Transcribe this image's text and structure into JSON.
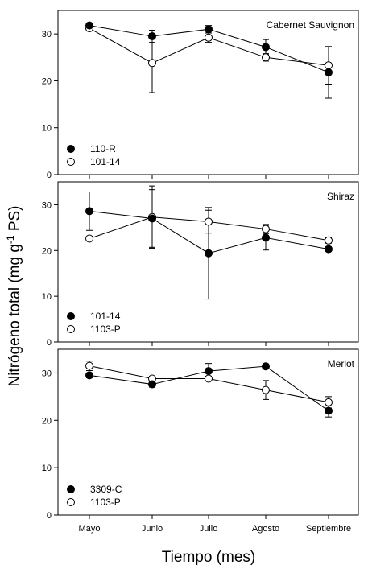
{
  "figure": {
    "ylabel_main": "Nitrógeno total (mg g",
    "ylabel_sup": "-1",
    "ylabel_end": " PS)",
    "xlabel": "Tiempo (mes)"
  },
  "chart_data": [
    {
      "type": "line",
      "title": "Cabernet Sauvignon",
      "categories": [
        "Mayo",
        "Junio",
        "Julio",
        "Agosto",
        "Septiembre"
      ],
      "ylim": [
        0,
        35
      ],
      "yticks": [
        0,
        10,
        20,
        30
      ],
      "legend_placement": "bottom-left",
      "series": [
        {
          "name": "110-R",
          "marker": "filled",
          "values": [
            31.8,
            29.5,
            31.0,
            27.2,
            21.8
          ],
          "err": [
            0.5,
            1.3,
            0.8,
            1.6,
            5.5
          ]
        },
        {
          "name": "101-14",
          "marker": "open",
          "values": [
            31.2,
            23.8,
            29.2,
            25.0,
            23.3
          ],
          "err": [
            0.5,
            6.3,
            1.0,
            0.8,
            4.0
          ]
        }
      ]
    },
    {
      "type": "line",
      "title": "Shiraz",
      "categories": [
        "Mayo",
        "Junio",
        "Julio",
        "Agosto",
        "Septiembre"
      ],
      "ylim": [
        0,
        35
      ],
      "yticks": [
        0,
        10,
        20,
        30
      ],
      "legend_placement": "bottom-left",
      "series": [
        {
          "name": "101-14",
          "marker": "filled",
          "values": [
            28.6,
            27.0,
            19.4,
            22.8,
            20.3
          ],
          "err": [
            4.2,
            6.3,
            10.0,
            2.7,
            0.5
          ]
        },
        {
          "name": "1103-P",
          "marker": "open",
          "values": [
            22.6,
            27.3,
            26.3,
            24.7,
            22.2
          ],
          "err": [
            0.5,
            6.8,
            2.5,
            1.0,
            0.6
          ]
        }
      ]
    },
    {
      "type": "line",
      "title": "Merlot",
      "categories": [
        "Mayo",
        "Junio",
        "Julio",
        "Agosto",
        "Septiembre"
      ],
      "ylim": [
        0,
        35
      ],
      "yticks": [
        0,
        10,
        20,
        30
      ],
      "legend_placement": "bottom-left",
      "series": [
        {
          "name": "3309-C",
          "marker": "filled",
          "values": [
            29.5,
            27.6,
            30.4,
            31.4,
            22.0
          ],
          "err": [
            0.5,
            0.6,
            1.6,
            0.5,
            1.3
          ]
        },
        {
          "name": "1103-P",
          "marker": "open",
          "values": [
            31.5,
            28.8,
            28.8,
            26.4,
            23.8
          ],
          "err": [
            1.0,
            0.5,
            0.5,
            2.0,
            1.2
          ]
        }
      ]
    }
  ]
}
